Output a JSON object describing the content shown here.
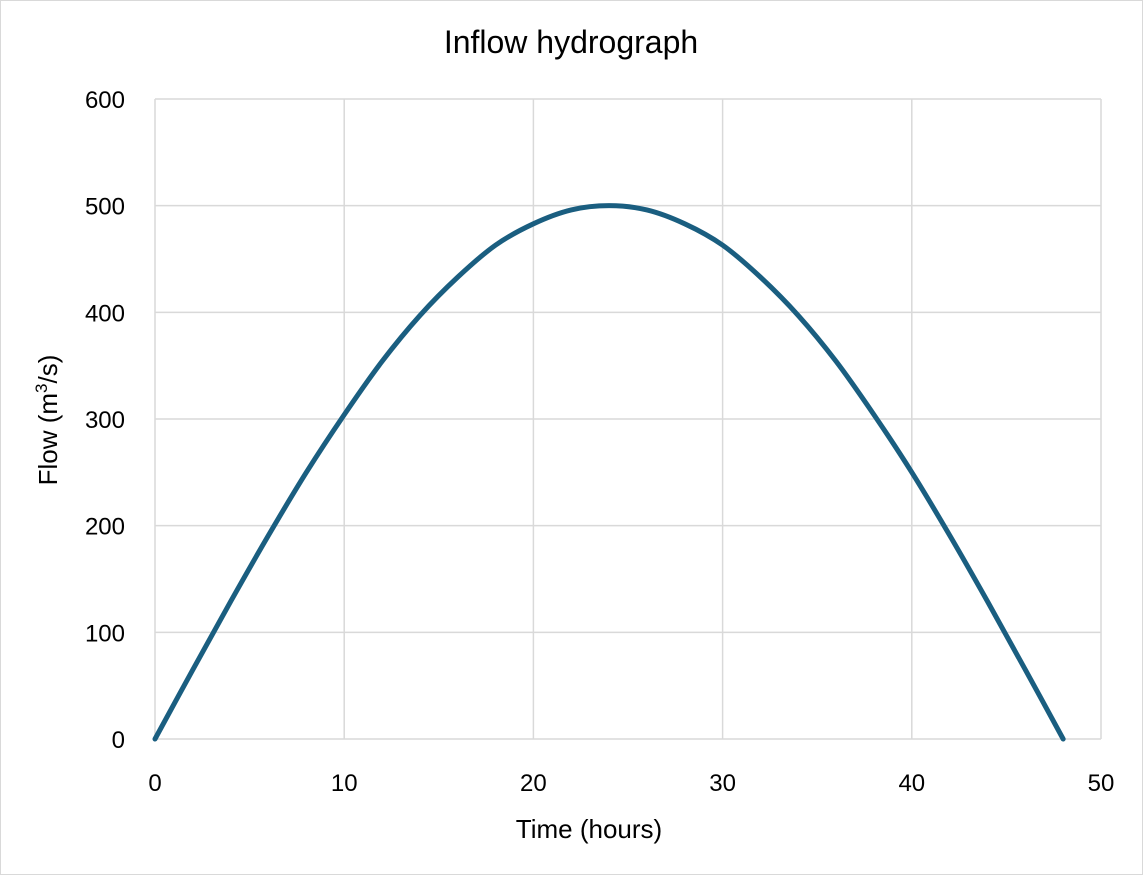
{
  "chart_data": {
    "type": "line",
    "title": "Inflow hydrograph",
    "xlabel": "Time (hours)",
    "ylabel_main": "Flow (m",
    "ylabel_sup": "3",
    "ylabel_tail": "/s)",
    "xlim": [
      0,
      50
    ],
    "ylim": [
      0,
      600
    ],
    "x_ticks": [
      "0",
      "10",
      "20",
      "30",
      "40",
      "50"
    ],
    "y_ticks": [
      "0",
      "100",
      "200",
      "300",
      "400",
      "500",
      "600"
    ],
    "grid": true,
    "legend": "none",
    "series": [
      {
        "color": "#1a5e80",
        "x": [
          0,
          2,
          4,
          6,
          8,
          10,
          12,
          14,
          16,
          18,
          20,
          22,
          24,
          26,
          28,
          30,
          32,
          34,
          36,
          38,
          40,
          42,
          44,
          46,
          48
        ],
        "y": [
          0,
          65,
          129,
          191,
          250,
          304,
          354,
          397,
          433,
          463,
          483,
          496,
          500,
          496,
          483,
          463,
          433,
          397,
          354,
          304,
          250,
          191,
          129,
          65,
          0
        ]
      }
    ]
  }
}
